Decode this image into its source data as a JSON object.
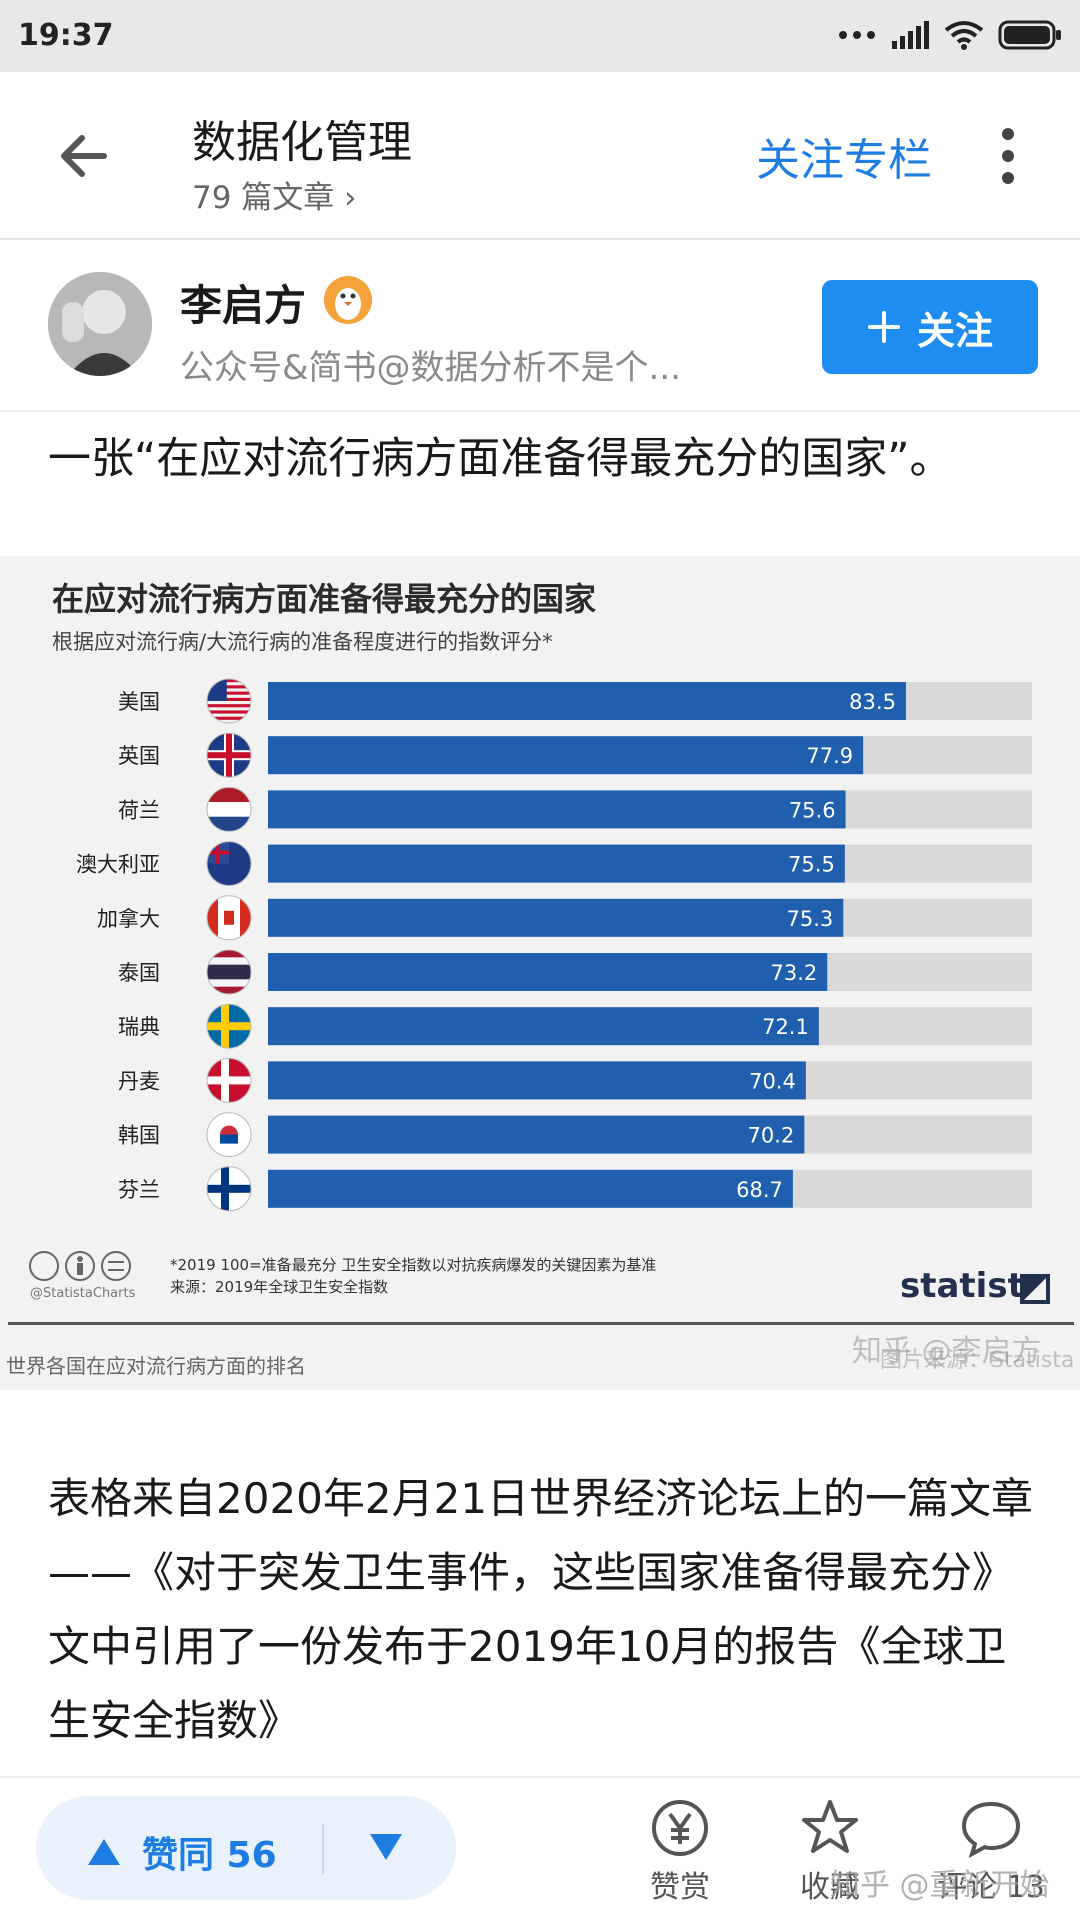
{
  "status_bar": {
    "time": "19:37"
  },
  "header": {
    "title": "数据化管理",
    "article_count": "79 篇文章",
    "follow_column_label": "关注专栏"
  },
  "author": {
    "name": "李启方",
    "description": "公众号&简书@数据分析不是个...",
    "follow_label": "关注"
  },
  "lead_text": "一张“在应对流行病方面准备得最充分的国家”。",
  "figure": {
    "footnote_line1": "*2019 100=准备最充分 卫生安全指数以对抗疾病爆发的关键因素为基准",
    "footnote_line2": "来源：2019年全球卫生安全指数",
    "source_tag": "@StatistaCharts",
    "logo": "statista",
    "caption": "世界各国在应对流行病方面的排名",
    "watermark_text": "知乎 @李启方",
    "watermark_sub": "图片来源：Statista"
  },
  "chart_data": {
    "type": "bar",
    "orientation": "horizontal",
    "title": "在应对流行病方面准备得最充分的国家",
    "subtitle": "根据应对流行病/大流行病的准备程度进行的指数评分*",
    "categories": [
      "美国",
      "英国",
      "荷兰",
      "澳大利亚",
      "加拿大",
      "泰国",
      "瑞典",
      "丹麦",
      "韩国",
      "芬兰"
    ],
    "flags": [
      "us",
      "uk",
      "nl",
      "au",
      "ca",
      "th",
      "se",
      "dk",
      "kr",
      "fi"
    ],
    "values": [
      83.5,
      77.9,
      75.6,
      75.5,
      75.3,
      73.2,
      72.1,
      70.4,
      70.2,
      68.7
    ],
    "labels": [
      "83.5",
      "77.9",
      "75.6",
      "75.5",
      "75.3",
      "73.2",
      "72.1",
      "70.4",
      "70.2",
      "68.7"
    ],
    "xlim": [
      0,
      100
    ],
    "bar_color": "#1f5fae",
    "track_color": "#d9d9d9"
  },
  "paragraph": "表格来自2020年2月21日世界经济论坛上的一篇文章——《对于突发卫生事件，这些国家准备得最充分》文中引用了一份发布于2019年10月的报告《全球卫生安全指数》",
  "bottom_bar": {
    "agree_label": "赞同 56",
    "reward_label": "赞赏",
    "favorite_label": "收藏",
    "comment_label": "评论 13",
    "watermark": "知乎 @重新开始"
  },
  "colors": {
    "accent": "#1e7de3",
    "follow_button": "#1e8cf0"
  }
}
